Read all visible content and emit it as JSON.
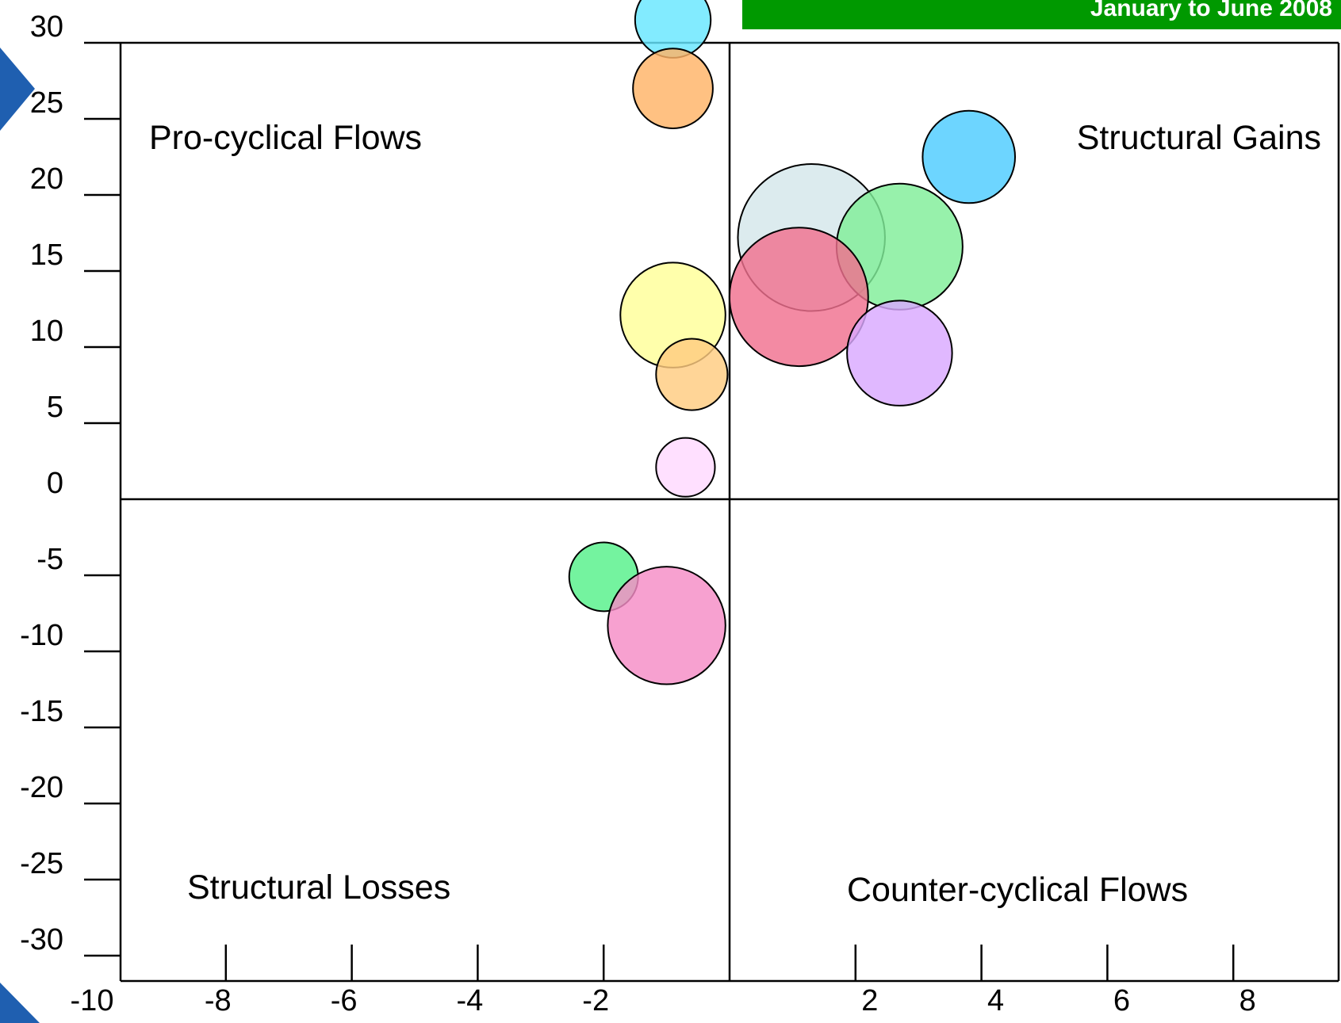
{
  "banner": {
    "text": "January to June 2008",
    "color": "#009900"
  },
  "chart_data": {
    "type": "bubble",
    "title": "",
    "xlabel": "",
    "ylabel": "",
    "xlim": [
      -10,
      9.6
    ],
    "ylim": [
      -30,
      30
    ],
    "grid": false,
    "legend": "none",
    "x_ticks": [
      -10,
      -8,
      -6,
      -4,
      -2,
      2,
      4,
      6,
      8
    ],
    "y_ticks": [
      30,
      25,
      20,
      15,
      10,
      5,
      0,
      -5,
      -10,
      -15,
      -20,
      -25,
      -30
    ],
    "quadrant_labels": {
      "top_left": "Pro-cyclical Flows",
      "top_right": "Structural Gains",
      "bottom_left": "Structural Losses",
      "bottom_right": "Counter-cyclical Flows"
    },
    "bubbles": [
      {
        "x": -0.9,
        "y": 31.5,
        "size": 0.9,
        "color": "#66e6ff"
      },
      {
        "x": -0.9,
        "y": 27.0,
        "size": 0.95,
        "color": "#ffb366"
      },
      {
        "x": 3.8,
        "y": 22.5,
        "size": 1.1,
        "color": "#4dccff"
      },
      {
        "x": 1.3,
        "y": 17.2,
        "size": 1.75,
        "color": "#d4e6ea"
      },
      {
        "x": 2.7,
        "y": 16.6,
        "size": 1.5,
        "color": "#80ee99"
      },
      {
        "x": 1.1,
        "y": 13.3,
        "size": 1.65,
        "color": "#f0708f"
      },
      {
        "x": 2.7,
        "y": 9.6,
        "size": 1.25,
        "color": "#d9a8ff"
      },
      {
        "x": -0.9,
        "y": 12.1,
        "size": 1.25,
        "color": "#ffff99"
      },
      {
        "x": -0.6,
        "y": 8.2,
        "size": 0.85,
        "color": "#ffcc80"
      },
      {
        "x": -0.7,
        "y": 2.1,
        "size": 0.7,
        "color": "#ffd9ff"
      },
      {
        "x": -2.0,
        "y": -5.1,
        "size": 0.82,
        "color": "#55f08a"
      },
      {
        "x": -1.0,
        "y": -8.3,
        "size": 1.4,
        "color": "#f58cc6"
      }
    ]
  }
}
